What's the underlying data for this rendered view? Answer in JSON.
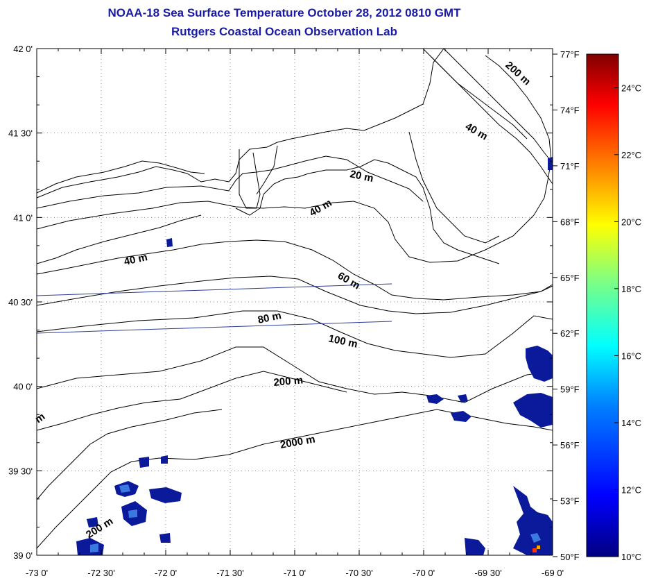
{
  "title": "NOAA-18 Sea Surface Temperature October 28, 2012 0810 GMT",
  "subtitle": "Rutgers Coastal Ocean Observation Lab",
  "map": {
    "lon_range": [
      -73,
      -69
    ],
    "lat_range": [
      39,
      42
    ],
    "grid": true,
    "lon_ticks": [
      "-73 0'",
      "-72 30'",
      "-72 0'",
      "-71 30'",
      "-71 0'",
      "-70 30'",
      "-70 0'",
      "-69 30'",
      "-69 0'"
    ],
    "lat_ticks": [
      "42 0'",
      "41 30'",
      "41 0'",
      "40 30'",
      "40 0'",
      "39 30'",
      "39 0'"
    ],
    "contour_labels": [
      "200 m",
      "40 m",
      "20 m",
      "40 m",
      "40 m",
      "60 m",
      "80 m",
      "100 m",
      "200 m",
      "2000 m",
      "200 m",
      "m"
    ]
  },
  "colorbar": {
    "fahrenheit_labels": [
      "77°F",
      "74°F",
      "71°F",
      "68°F",
      "65°F",
      "62°F",
      "59°F",
      "56°F",
      "53°F",
      "50°F"
    ],
    "celsius_labels": [
      "24°C",
      "22°C",
      "20°C",
      "18°C",
      "16°C",
      "14°C",
      "12°C",
      "10°C"
    ],
    "gradient_colors": [
      "#000080",
      "#0000ff",
      "#0080ff",
      "#00ffff",
      "#80ff80",
      "#ffff00",
      "#ff8000",
      "#ff0000",
      "#800000"
    ]
  },
  "colors": {
    "title": "#1a1aa8",
    "sst_patch": "#0a1a9a",
    "sst_patch_light": "#3a7ae0",
    "track_line": "#2a3a9a"
  }
}
